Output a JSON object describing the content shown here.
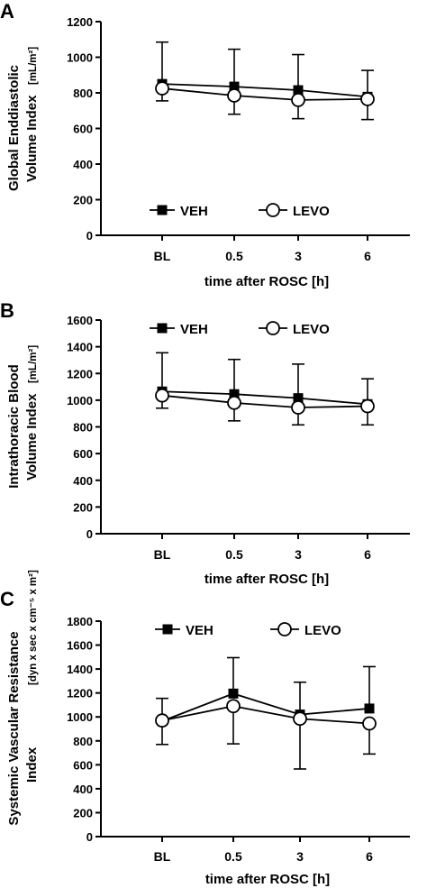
{
  "chart_data": [
    {
      "type": "line",
      "panel": "A",
      "categories": [
        "BL",
        "0.5",
        "3",
        "6"
      ],
      "xlabel": "time after ROSC [h]",
      "ylabel_lines": [
        "Global Enddiastolic",
        "Volume Index"
      ],
      "ylabel_unit": "[mL/m²]",
      "ylim": [
        0,
        1200
      ],
      "yticks": [
        0,
        200,
        400,
        600,
        800,
        1000,
        1200
      ],
      "legend_position": "lower-center",
      "series": [
        {
          "name": "VEH",
          "marker": "filled-square",
          "values": [
            850,
            835,
            815,
            778
          ],
          "err_up": [
            235,
            210,
            200,
            148
          ]
        },
        {
          "name": "LEVO",
          "marker": "open-circle",
          "values": [
            825,
            785,
            760,
            765
          ],
          "err_down": [
            70,
            105,
            105,
            115
          ]
        }
      ]
    },
    {
      "type": "line",
      "panel": "B",
      "categories": [
        "BL",
        "0.5",
        "3",
        "6"
      ],
      "xlabel": "time after ROSC [h]",
      "ylabel_lines": [
        "Intrathoracic Blood",
        "Volume Index"
      ],
      "ylabel_unit": "[mL/m²]",
      "ylim": [
        0,
        1600
      ],
      "yticks": [
        0,
        200,
        400,
        600,
        800,
        1000,
        1200,
        1400,
        1600
      ],
      "legend_position": "top-center",
      "series": [
        {
          "name": "VEH",
          "marker": "filled-square",
          "values": [
            1065,
            1045,
            1015,
            970
          ],
          "err_up": [
            290,
            260,
            255,
            190
          ]
        },
        {
          "name": "LEVO",
          "marker": "open-circle",
          "values": [
            1035,
            980,
            945,
            955
          ],
          "err_down": [
            95,
            135,
            130,
            140
          ]
        }
      ]
    },
    {
      "type": "line",
      "panel": "C",
      "categories": [
        "BL",
        "0.5",
        "3",
        "6"
      ],
      "xlabel": "time after ROSC [h]",
      "ylabel_lines": [
        "Systemic Vascular Resistance",
        "Index"
      ],
      "ylabel_unit": "[dyn x sec x cm⁻⁵ x m²]",
      "ylim": [
        0,
        1800
      ],
      "yticks": [
        0,
        200,
        400,
        600,
        800,
        1000,
        1200,
        1400,
        1600,
        1800
      ],
      "legend_position": "top-center",
      "series": [
        {
          "name": "VEH",
          "marker": "filled-square",
          "values": [
            965,
            1195,
            1020,
            1070
          ],
          "err_up": [
            190,
            300,
            270,
            350
          ]
        },
        {
          "name": "LEVO",
          "marker": "open-circle",
          "values": [
            970,
            1090,
            985,
            945
          ],
          "err_down": [
            200,
            315,
            420,
            255
          ]
        }
      ]
    }
  ]
}
